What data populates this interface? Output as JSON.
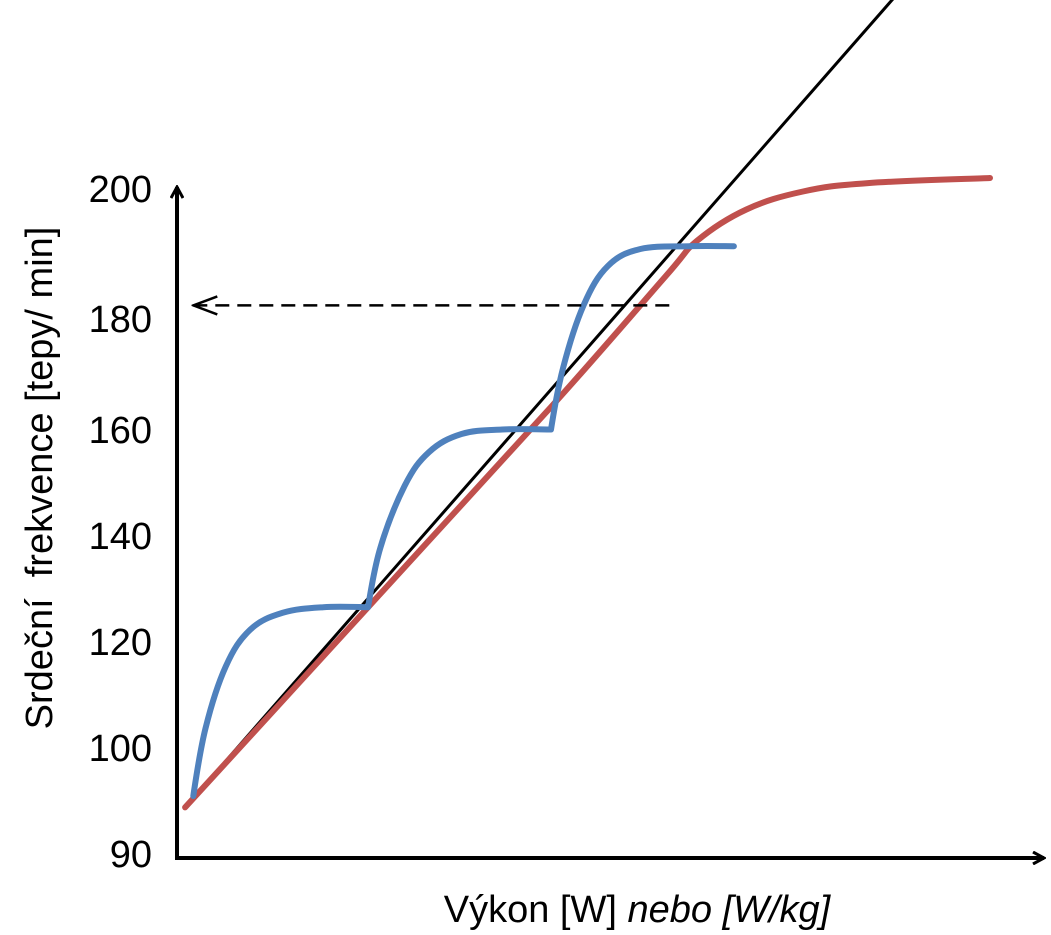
{
  "chart_data": {
    "type": "line",
    "xlabel": "Výkon [W]",
    "xlabel_italic": "nebo [W/kg]",
    "ylabel": "Srdeční  frekvence [tepy/ min]",
    "yticks": [
      90,
      100,
      120,
      140,
      160,
      180,
      200
    ],
    "ylim": [
      90,
      200
    ],
    "xlim": [
      0,
      100
    ],
    "grid": false,
    "legend": "none",
    "series": [
      {
        "color": "#000000",
        "style": "solid",
        "points": [
          [
            1,
            90
          ],
          [
            100,
            253
          ]
        ]
      },
      {
        "color": "#c0504d",
        "style": "solid",
        "points": [
          [
            1,
            90
          ],
          [
            23.5,
            125.5
          ],
          [
            46,
            161
          ],
          [
            60,
            184
          ],
          [
            64,
            190.5
          ],
          [
            70,
            196
          ],
          [
            77,
            199.2
          ],
          [
            85,
            200.7
          ],
          [
            100,
            201.6
          ]
        ]
      },
      {
        "color": "#4f81bd",
        "style": "solid",
        "points": [
          [
            2,
            92
          ],
          [
            3.5,
            104
          ],
          [
            6,
            115
          ],
          [
            9,
            121.5
          ],
          [
            13,
            124.5
          ],
          [
            18,
            125.5
          ],
          [
            23.5,
            125.5
          ],
          [
            23.5,
            125.5
          ],
          [
            25,
            136
          ],
          [
            28,
            147
          ],
          [
            31,
            153
          ],
          [
            35,
            156.2
          ],
          [
            40,
            157
          ],
          [
            46,
            157
          ],
          [
            46,
            157
          ],
          [
            47.5,
            168
          ],
          [
            50,
            179
          ],
          [
            53,
            186
          ],
          [
            57,
            189
          ],
          [
            63,
            189.5
          ],
          [
            68.5,
            189.5
          ]
        ]
      },
      {
        "color": "#000000",
        "style": "dashed",
        "arrow": "start",
        "points": [
          [
            2,
            179
          ],
          [
            61.5,
            179
          ]
        ]
      }
    ]
  }
}
